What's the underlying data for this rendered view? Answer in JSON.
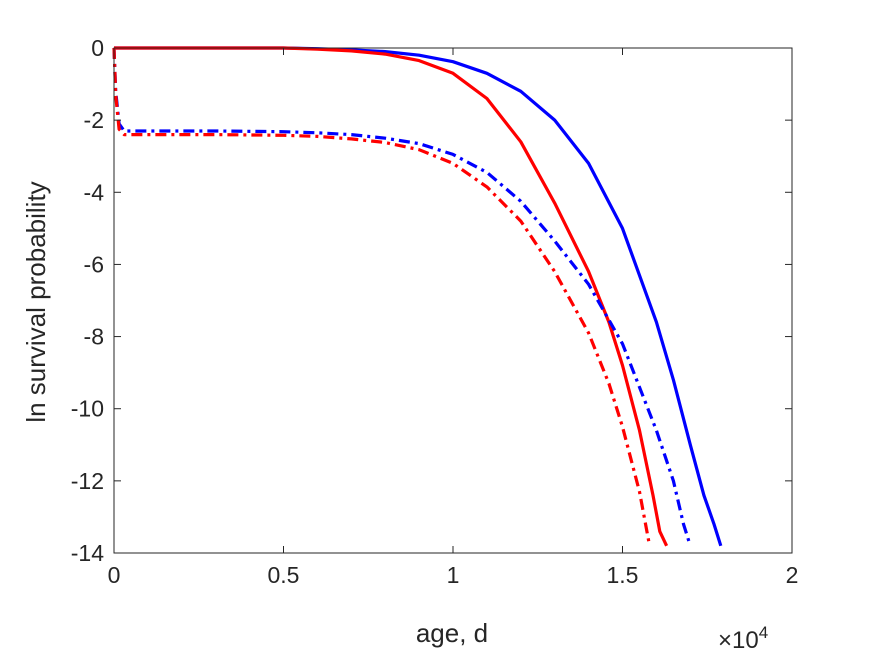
{
  "chart_data": {
    "type": "line",
    "xlabel": "age, d",
    "ylabel": "ln survival probability",
    "x_scale_note": {
      "times": "×",
      "base": "10",
      "exponent": "4"
    },
    "xlim": [
      0,
      20000
    ],
    "ylim": [
      -14,
      0
    ],
    "x_ticks": [
      0,
      5000,
      10000,
      15000,
      20000
    ],
    "x_tick_labels": [
      "0",
      "0.5",
      "1",
      "1.5",
      "2"
    ],
    "y_ticks": [
      0,
      -2,
      -4,
      -6,
      -8,
      -10,
      -12,
      -14
    ],
    "y_tick_labels": [
      "0",
      "-2",
      "-4",
      "-6",
      "-8",
      "-10",
      "-12",
      "-14"
    ],
    "grid": false,
    "series": [
      {
        "color": "#0000ff",
        "style": "solid",
        "points": [
          [
            0,
            0
          ],
          [
            1000,
            0
          ],
          [
            2000,
            0
          ],
          [
            3000,
            0
          ],
          [
            4000,
            0
          ],
          [
            5000,
            0
          ],
          [
            6000,
            -0.02
          ],
          [
            7000,
            -0.05
          ],
          [
            8000,
            -0.1
          ],
          [
            9000,
            -0.2
          ],
          [
            10000,
            -0.38
          ],
          [
            11000,
            -0.7
          ],
          [
            12000,
            -1.2
          ],
          [
            13000,
            -2.0
          ],
          [
            14000,
            -3.2
          ],
          [
            15000,
            -5.0
          ],
          [
            16000,
            -7.6
          ],
          [
            16500,
            -9.2
          ],
          [
            17000,
            -11.0
          ],
          [
            17400,
            -12.4
          ],
          [
            17700,
            -13.2
          ],
          [
            17900,
            -13.8
          ]
        ]
      },
      {
        "color": "#ff0000",
        "style": "solid",
        "points": [
          [
            0,
            0
          ],
          [
            1000,
            0
          ],
          [
            2000,
            0
          ],
          [
            3000,
            0
          ],
          [
            4000,
            0
          ],
          [
            5000,
            0
          ],
          [
            6000,
            -0.03
          ],
          [
            7000,
            -0.08
          ],
          [
            8000,
            -0.17
          ],
          [
            9000,
            -0.35
          ],
          [
            10000,
            -0.7
          ],
          [
            11000,
            -1.4
          ],
          [
            12000,
            -2.6
          ],
          [
            13000,
            -4.3
          ],
          [
            14000,
            -6.2
          ],
          [
            14600,
            -7.6
          ],
          [
            15000,
            -8.8
          ],
          [
            15500,
            -10.6
          ],
          [
            15900,
            -12.4
          ],
          [
            16100,
            -13.4
          ],
          [
            16300,
            -13.8
          ]
        ]
      },
      {
        "color": "#0000ff",
        "style": "dashdot",
        "points": [
          [
            0,
            0
          ],
          [
            50,
            -1.2
          ],
          [
            150,
            -2.1
          ],
          [
            300,
            -2.3
          ],
          [
            1000,
            -2.3
          ],
          [
            3000,
            -2.3
          ],
          [
            5000,
            -2.32
          ],
          [
            6000,
            -2.35
          ],
          [
            7000,
            -2.4
          ],
          [
            8000,
            -2.5
          ],
          [
            9000,
            -2.65
          ],
          [
            10000,
            -2.95
          ],
          [
            11000,
            -3.45
          ],
          [
            12000,
            -4.25
          ],
          [
            13000,
            -5.35
          ],
          [
            14000,
            -6.55
          ],
          [
            15000,
            -8.2
          ],
          [
            16000,
            -10.6
          ],
          [
            16500,
            -12.0
          ],
          [
            16800,
            -13.2
          ],
          [
            17000,
            -13.8
          ]
        ]
      },
      {
        "color": "#ff0000",
        "style": "dashdot",
        "points": [
          [
            0,
            0
          ],
          [
            50,
            -1.3
          ],
          [
            150,
            -2.25
          ],
          [
            300,
            -2.4
          ],
          [
            1000,
            -2.4
          ],
          [
            3000,
            -2.4
          ],
          [
            5000,
            -2.42
          ],
          [
            6000,
            -2.45
          ],
          [
            7000,
            -2.52
          ],
          [
            8000,
            -2.62
          ],
          [
            9000,
            -2.82
          ],
          [
            10000,
            -3.2
          ],
          [
            11000,
            -3.85
          ],
          [
            12000,
            -4.8
          ],
          [
            13000,
            -6.2
          ],
          [
            14000,
            -7.9
          ],
          [
            14600,
            -9.3
          ],
          [
            15000,
            -10.5
          ],
          [
            15500,
            -12.3
          ],
          [
            15800,
            -13.8
          ]
        ]
      }
    ]
  }
}
